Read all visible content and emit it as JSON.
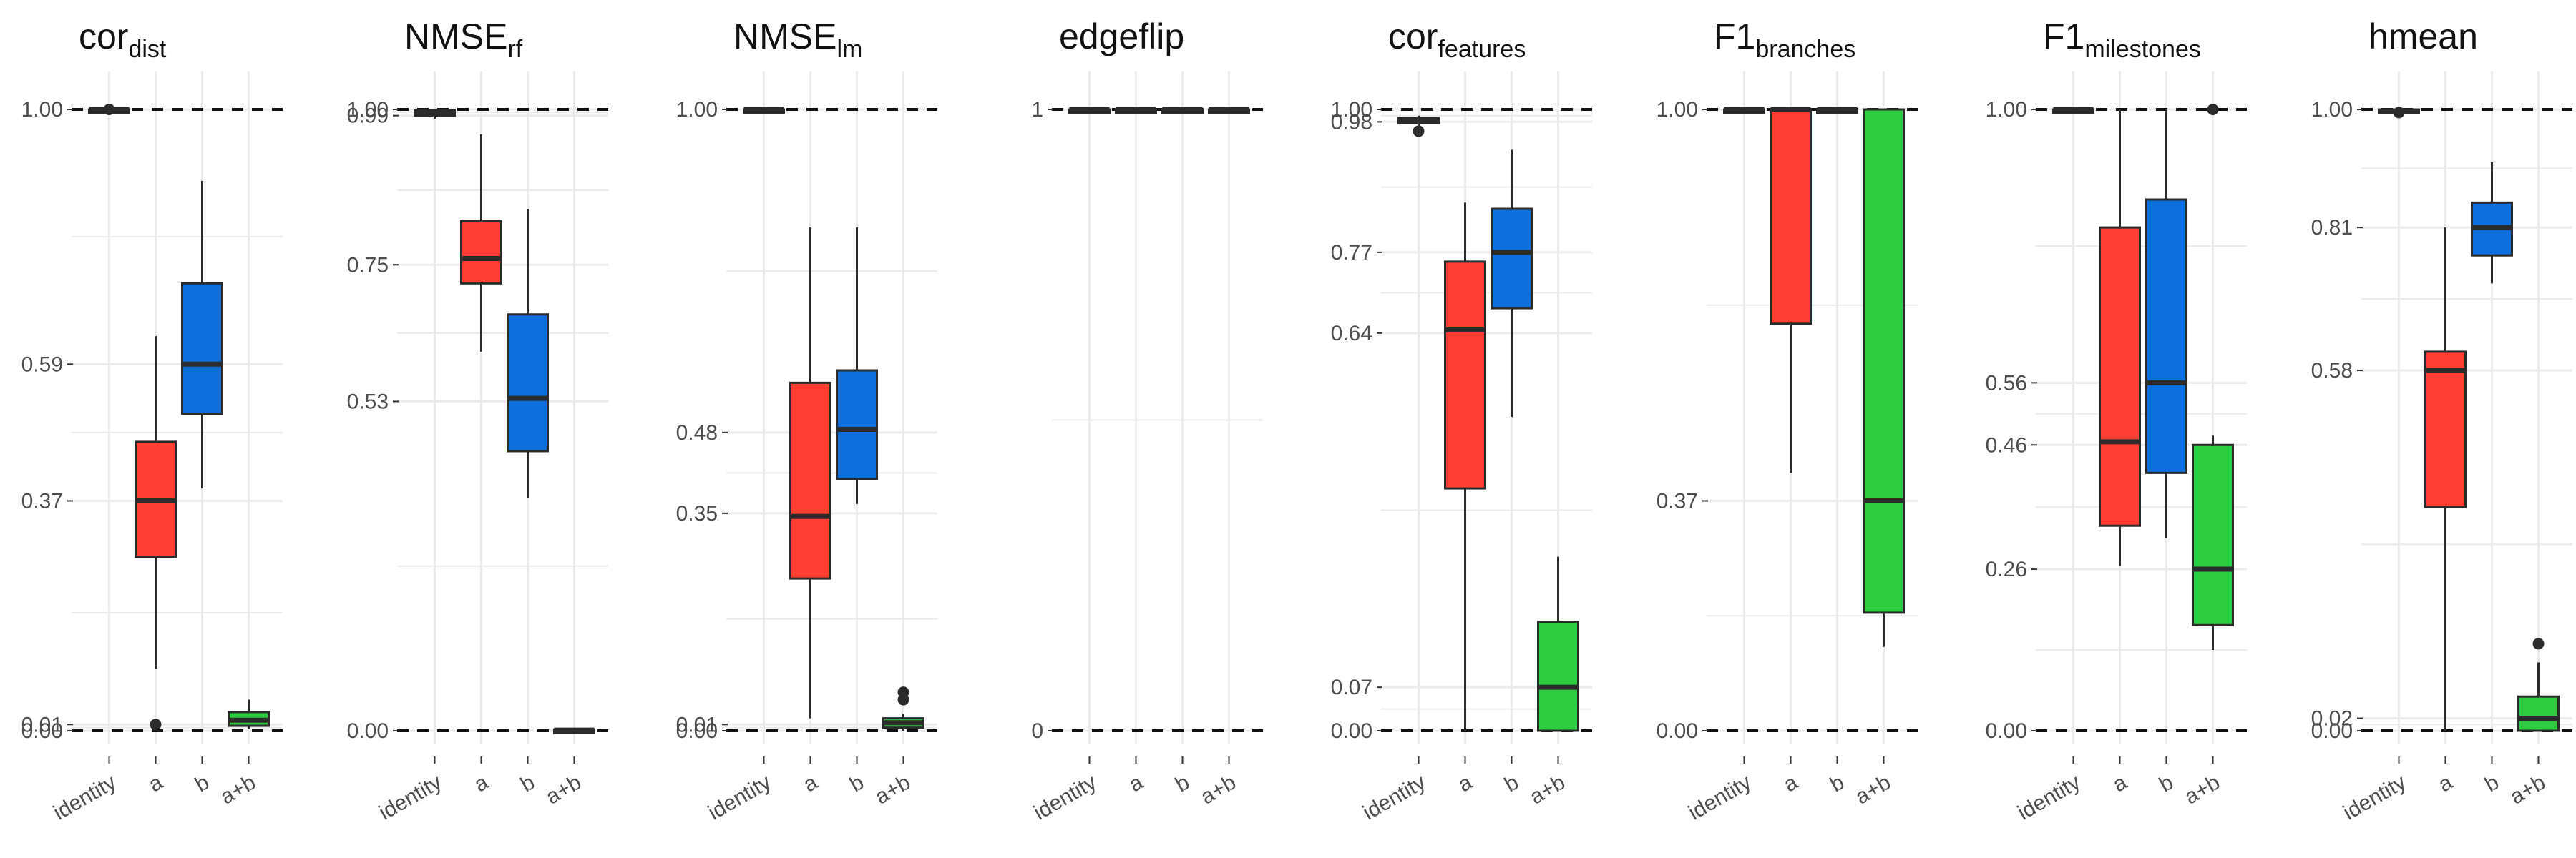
{
  "colors": {
    "red": "#ff3d33",
    "blue": "#0c6fdc",
    "green": "#2ecc40",
    "dark": "#2b2b2b",
    "grid": "#ebebeb",
    "tick_text": "#4d4d4d"
  },
  "chart_data": [
    {
      "type": "boxplot",
      "title": "cor",
      "title_sub": "dist",
      "categories": [
        "identity",
        "a",
        "b",
        "a+b"
      ],
      "ylim": [
        0,
        1
      ],
      "yticks": [
        0,
        0.01,
        0.37,
        0.59,
        1
      ],
      "ytick_labels": [
        "0.00",
        "0.01",
        "0.37",
        "0.59",
        "1.00"
      ],
      "ref_lines": [
        0,
        1
      ],
      "boxes": [
        {
          "category": "identity",
          "q1": 0.999,
          "median": 1.0,
          "q3": 1.0,
          "whisker_low": 0.998,
          "whisker_high": 1.0,
          "outliers": [
            1.0
          ],
          "color": "#2b2b2b"
        },
        {
          "category": "a",
          "q1": 0.28,
          "median": 0.37,
          "q3": 0.465,
          "whisker_low": 0.1,
          "whisker_high": 0.635,
          "outliers": [
            0.01
          ],
          "color": "#ff3d33"
        },
        {
          "category": "b",
          "q1": 0.51,
          "median": 0.59,
          "q3": 0.72,
          "whisker_low": 0.39,
          "whisker_high": 0.885,
          "outliers": [],
          "color": "#0c6fdc"
        },
        {
          "category": "a+b",
          "q1": 0.008,
          "median": 0.017,
          "q3": 0.03,
          "whisker_low": 0.003,
          "whisker_high": 0.05,
          "outliers": [],
          "color": "#2ecc40"
        }
      ]
    },
    {
      "type": "boxplot",
      "title": "NMSE",
      "title_sub": "rf",
      "categories": [
        "identity",
        "a",
        "b",
        "a+b"
      ],
      "ylim": [
        0,
        1
      ],
      "yticks": [
        0,
        0.53,
        0.75,
        0.99,
        1
      ],
      "ytick_labels": [
        "0.00",
        "0.53",
        "0.75",
        "0.99",
        "1.00"
      ],
      "ref_lines": [
        0,
        1
      ],
      "boxes": [
        {
          "category": "identity",
          "q1": 0.99,
          "median": 0.995,
          "q3": 0.999,
          "whisker_low": 0.985,
          "whisker_high": 1.0,
          "outliers": [],
          "color": "#2b2b2b"
        },
        {
          "category": "a",
          "q1": 0.72,
          "median": 0.76,
          "q3": 0.82,
          "whisker_low": 0.61,
          "whisker_high": 0.96,
          "outliers": [],
          "color": "#ff3d33"
        },
        {
          "category": "b",
          "q1": 0.45,
          "median": 0.535,
          "q3": 0.67,
          "whisker_low": 0.375,
          "whisker_high": 0.84,
          "outliers": [],
          "color": "#0c6fdc"
        },
        {
          "category": "a+b",
          "q1": 0.0,
          "median": 0.001,
          "q3": 0.002,
          "whisker_low": 0.0,
          "whisker_high": 0.003,
          "outliers": [],
          "color": "#2ecc40"
        }
      ]
    },
    {
      "type": "boxplot",
      "title": "NMSE",
      "title_sub": "lm",
      "categories": [
        "identity",
        "a",
        "b",
        "a+b"
      ],
      "ylim": [
        0,
        1
      ],
      "yticks": [
        0,
        0.01,
        0.35,
        0.48,
        1
      ],
      "ytick_labels": [
        "0.00",
        "0.01",
        "0.35",
        "0.48",
        "1.00"
      ],
      "ref_lines": [
        0,
        1
      ],
      "boxes": [
        {
          "category": "identity",
          "q1": 0.999,
          "median": 1.0,
          "q3": 1.0,
          "whisker_low": 0.998,
          "whisker_high": 1.0,
          "outliers": [],
          "color": "#2b2b2b"
        },
        {
          "category": "a",
          "q1": 0.245,
          "median": 0.345,
          "q3": 0.56,
          "whisker_low": 0.02,
          "whisker_high": 0.81,
          "outliers": [],
          "color": "#ff3d33"
        },
        {
          "category": "b",
          "q1": 0.405,
          "median": 0.485,
          "q3": 0.58,
          "whisker_low": 0.365,
          "whisker_high": 0.81,
          "outliers": [],
          "color": "#0c6fdc"
        },
        {
          "category": "a+b",
          "q1": 0.005,
          "median": 0.013,
          "q3": 0.02,
          "whisker_low": 0.0,
          "whisker_high": 0.027,
          "outliers": [
            0.05,
            0.062
          ],
          "color": "#2ecc40"
        }
      ]
    },
    {
      "type": "boxplot",
      "title": "edgeflip",
      "title_sub": "",
      "categories": [
        "identity",
        "a",
        "b",
        "a+b"
      ],
      "ylim": [
        0,
        1
      ],
      "yticks": [
        0,
        1
      ],
      "ytick_labels": [
        "0",
        "1"
      ],
      "ref_lines": [
        0,
        1
      ],
      "boxes": [
        {
          "category": "identity",
          "q1": 0.999,
          "median": 1.0,
          "q3": 1.0,
          "whisker_low": 0.998,
          "whisker_high": 1.0,
          "outliers": [],
          "color": "#2b2b2b"
        },
        {
          "category": "a",
          "q1": 0.999,
          "median": 1.0,
          "q3": 1.0,
          "whisker_low": 0.998,
          "whisker_high": 1.0,
          "outliers": [],
          "color": "#2b2b2b"
        },
        {
          "category": "b",
          "q1": 0.999,
          "median": 1.0,
          "q3": 1.0,
          "whisker_low": 0.998,
          "whisker_high": 1.0,
          "outliers": [],
          "color": "#2b2b2b"
        },
        {
          "category": "a+b",
          "q1": 0.999,
          "median": 1.0,
          "q3": 1.0,
          "whisker_low": 0.998,
          "whisker_high": 1.0,
          "outliers": [],
          "color": "#2b2b2b"
        }
      ]
    },
    {
      "type": "boxplot",
      "title": "cor",
      "title_sub": "features",
      "categories": [
        "identity",
        "a",
        "b",
        "a+b"
      ],
      "ylim": [
        0,
        1
      ],
      "yticks": [
        0,
        0.07,
        0.64,
        0.77,
        0.98,
        1
      ],
      "ytick_labels": [
        "0.00",
        "0.07",
        "0.64",
        "0.77",
        "0.98",
        "1.00"
      ],
      "ref_lines": [
        0,
        1
      ],
      "boxes": [
        {
          "category": "identity",
          "q1": 0.978,
          "median": 0.983,
          "q3": 0.986,
          "whisker_low": 0.972,
          "whisker_high": 0.99,
          "outliers": [
            0.965
          ],
          "color": "#2b2b2b"
        },
        {
          "category": "a",
          "q1": 0.39,
          "median": 0.645,
          "q3": 0.755,
          "whisker_low": 0.0,
          "whisker_high": 0.85,
          "outliers": [],
          "color": "#ff3d33"
        },
        {
          "category": "b",
          "q1": 0.68,
          "median": 0.77,
          "q3": 0.84,
          "whisker_low": 0.505,
          "whisker_high": 0.935,
          "outliers": [],
          "color": "#0c6fdc"
        },
        {
          "category": "a+b",
          "q1": 0.0,
          "median": 0.07,
          "q3": 0.175,
          "whisker_low": 0.0,
          "whisker_high": 0.28,
          "outliers": [],
          "color": "#2ecc40"
        }
      ]
    },
    {
      "type": "boxplot",
      "title": "F1",
      "title_sub": "branches",
      "categories": [
        "identity",
        "a",
        "b",
        "a+b"
      ],
      "ylim": [
        0,
        1
      ],
      "yticks": [
        0,
        0.37,
        1
      ],
      "ytick_labels": [
        "0.00",
        "0.37",
        "1.00"
      ],
      "ref_lines": [
        0,
        1
      ],
      "boxes": [
        {
          "category": "identity",
          "q1": 0.999,
          "median": 1.0,
          "q3": 1.0,
          "whisker_low": 0.998,
          "whisker_high": 1.0,
          "outliers": [],
          "color": "#2b2b2b"
        },
        {
          "category": "a",
          "q1": 0.655,
          "median": 1.0,
          "q3": 1.0,
          "whisker_low": 0.415,
          "whisker_high": 1.0,
          "outliers": [],
          "color": "#ff3d33"
        },
        {
          "category": "b",
          "q1": 0.999,
          "median": 1.0,
          "q3": 1.0,
          "whisker_low": 0.998,
          "whisker_high": 1.0,
          "outliers": [],
          "color": "#2b2b2b"
        },
        {
          "category": "a+b",
          "q1": 0.19,
          "median": 0.37,
          "q3": 1.0,
          "whisker_low": 0.135,
          "whisker_high": 1.0,
          "outliers": [],
          "color": "#2ecc40"
        }
      ]
    },
    {
      "type": "boxplot",
      "title": "F1",
      "title_sub": "milestones",
      "categories": [
        "identity",
        "a",
        "b",
        "a+b"
      ],
      "ylim": [
        0,
        1
      ],
      "yticks": [
        0,
        0.26,
        0.46,
        0.56,
        1
      ],
      "ytick_labels": [
        "0.00",
        "0.26",
        "0.46",
        "0.56",
        "1.00"
      ],
      "ref_lines": [
        0,
        1
      ],
      "boxes": [
        {
          "category": "identity",
          "q1": 0.999,
          "median": 1.0,
          "q3": 1.0,
          "whisker_low": 0.998,
          "whisker_high": 1.0,
          "outliers": [],
          "color": "#2b2b2b"
        },
        {
          "category": "a",
          "q1": 0.33,
          "median": 0.465,
          "q3": 0.81,
          "whisker_low": 0.265,
          "whisker_high": 1.0,
          "outliers": [],
          "color": "#ff3d33"
        },
        {
          "category": "b",
          "q1": 0.415,
          "median": 0.56,
          "q3": 0.855,
          "whisker_low": 0.31,
          "whisker_high": 1.0,
          "outliers": [],
          "color": "#0c6fdc"
        },
        {
          "category": "a+b",
          "q1": 0.17,
          "median": 0.26,
          "q3": 0.46,
          "whisker_low": 0.13,
          "whisker_high": 0.475,
          "outliers": [
            1.0
          ],
          "color": "#2ecc40"
        }
      ]
    },
    {
      "type": "boxplot",
      "title": "hmean",
      "title_sub": "",
      "categories": [
        "identity",
        "a",
        "b",
        "a+b"
      ],
      "ylim": [
        0,
        1
      ],
      "yticks": [
        0,
        0.02,
        0.58,
        0.81,
        1
      ],
      "ytick_labels": [
        "0.00",
        "0.02",
        "0.58",
        "0.81",
        "1.00"
      ],
      "ref_lines": [
        0,
        1
      ],
      "boxes": [
        {
          "category": "identity",
          "q1": 0.994,
          "median": 0.997,
          "q3": 1.0,
          "whisker_low": 0.99,
          "whisker_high": 1.0,
          "outliers": [
            0.995
          ],
          "color": "#2b2b2b"
        },
        {
          "category": "a",
          "q1": 0.36,
          "median": 0.58,
          "q3": 0.61,
          "whisker_low": 0.0,
          "whisker_high": 0.81,
          "outliers": [],
          "color": "#ff3d33"
        },
        {
          "category": "b",
          "q1": 0.765,
          "median": 0.81,
          "q3": 0.85,
          "whisker_low": 0.72,
          "whisker_high": 0.915,
          "outliers": [],
          "color": "#0c6fdc"
        },
        {
          "category": "a+b",
          "q1": 0.0,
          "median": 0.02,
          "q3": 0.055,
          "whisker_low": 0.0,
          "whisker_high": 0.11,
          "outliers": [
            0.14
          ],
          "color": "#2ecc40"
        }
      ]
    }
  ]
}
